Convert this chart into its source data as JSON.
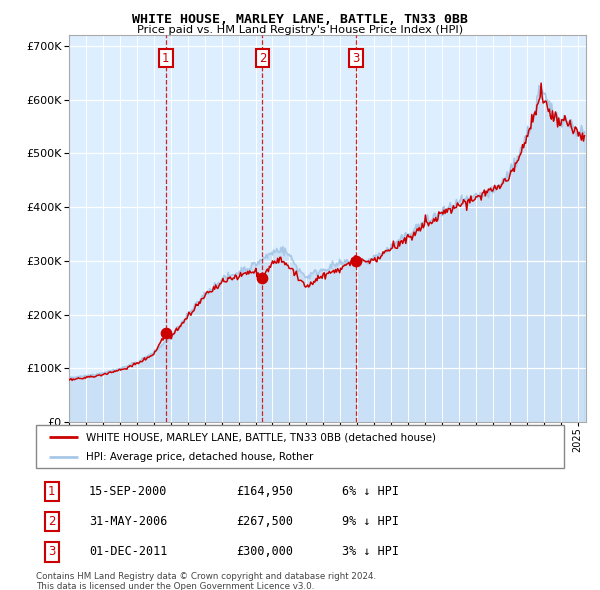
{
  "title": "WHITE HOUSE, MARLEY LANE, BATTLE, TN33 0BB",
  "subtitle": "Price paid vs. HM Land Registry's House Price Index (HPI)",
  "legend_line1": "WHITE HOUSE, MARLEY LANE, BATTLE, TN33 0BB (detached house)",
  "legend_line2": "HPI: Average price, detached house, Rother",
  "sales": [
    {
      "label": "1",
      "x_year": 2000.71,
      "price": 164950
    },
    {
      "label": "2",
      "x_year": 2006.41,
      "price": 267500
    },
    {
      "label": "3",
      "x_year": 2011.92,
      "price": 300000
    }
  ],
  "table_rows": [
    [
      "1",
      "15-SEP-2000",
      "£164,950",
      "6% ↓ HPI"
    ],
    [
      "2",
      "31-MAY-2006",
      "£267,500",
      "9% ↓ HPI"
    ],
    [
      "3",
      "01-DEC-2011",
      "£300,000",
      "3% ↓ HPI"
    ]
  ],
  "footer1": "Contains HM Land Registry data © Crown copyright and database right 2024.",
  "footer2": "This data is licensed under the Open Government Licence v3.0.",
  "hpi_color": "#a8c8e8",
  "price_color": "#cc0000",
  "bg_color": "#ddeeff",
  "ylim": [
    0,
    720000
  ],
  "xlim_start": 1995.0,
  "xlim_end": 2025.5,
  "hpi_waypoints": [
    [
      1995.0,
      82000
    ],
    [
      1996.0,
      86000
    ],
    [
      1997.0,
      92000
    ],
    [
      1998.0,
      100000
    ],
    [
      1999.0,
      112000
    ],
    [
      2000.0,
      130000
    ],
    [
      2001.0,
      160000
    ],
    [
      2002.0,
      200000
    ],
    [
      2003.0,
      240000
    ],
    [
      2004.0,
      268000
    ],
    [
      2005.0,
      282000
    ],
    [
      2006.0,
      295000
    ],
    [
      2007.0,
      318000
    ],
    [
      2007.5,
      325000
    ],
    [
      2008.0,
      310000
    ],
    [
      2008.5,
      285000
    ],
    [
      2009.0,
      270000
    ],
    [
      2009.5,
      278000
    ],
    [
      2010.0,
      285000
    ],
    [
      2010.5,
      290000
    ],
    [
      2011.0,
      295000
    ],
    [
      2011.5,
      298000
    ],
    [
      2012.0,
      295000
    ],
    [
      2012.5,
      300000
    ],
    [
      2013.0,
      308000
    ],
    [
      2013.5,
      315000
    ],
    [
      2014.0,
      325000
    ],
    [
      2014.5,
      335000
    ],
    [
      2015.0,
      348000
    ],
    [
      2015.5,
      360000
    ],
    [
      2016.0,
      372000
    ],
    [
      2016.5,
      380000
    ],
    [
      2017.0,
      390000
    ],
    [
      2017.5,
      398000
    ],
    [
      2018.0,
      405000
    ],
    [
      2018.5,
      410000
    ],
    [
      2019.0,
      415000
    ],
    [
      2019.5,
      420000
    ],
    [
      2020.0,
      425000
    ],
    [
      2020.5,
      440000
    ],
    [
      2021.0,
      460000
    ],
    [
      2021.5,
      490000
    ],
    [
      2022.0,
      530000
    ],
    [
      2022.5,
      575000
    ],
    [
      2022.75,
      620000
    ],
    [
      2023.0,
      605000
    ],
    [
      2023.5,
      575000
    ],
    [
      2024.0,
      565000
    ],
    [
      2024.5,
      555000
    ],
    [
      2025.0,
      540000
    ],
    [
      2025.4,
      535000
    ]
  ],
  "red_waypoints": [
    [
      1995.0,
      78000
    ],
    [
      1996.0,
      82000
    ],
    [
      1997.0,
      88000
    ],
    [
      1998.0,
      96000
    ],
    [
      1999.0,
      108000
    ],
    [
      2000.0,
      126000
    ],
    [
      2000.71,
      164950
    ],
    [
      2001.0,
      155000
    ],
    [
      2002.0,
      192000
    ],
    [
      2003.0,
      230000
    ],
    [
      2004.0,
      255000
    ],
    [
      2005.0,
      268000
    ],
    [
      2006.0,
      278000
    ],
    [
      2006.41,
      267500
    ],
    [
      2007.0,
      295000
    ],
    [
      2007.5,
      302000
    ],
    [
      2008.0,
      290000
    ],
    [
      2008.5,
      268000
    ],
    [
      2009.0,
      245000
    ],
    [
      2009.5,
      260000
    ],
    [
      2010.0,
      272000
    ],
    [
      2010.5,
      278000
    ],
    [
      2011.0,
      283000
    ],
    [
      2011.5,
      290000
    ],
    [
      2011.92,
      300000
    ],
    [
      2012.0,
      297000
    ],
    [
      2012.5,
      292000
    ],
    [
      2013.0,
      298000
    ],
    [
      2013.5,
      308000
    ],
    [
      2014.0,
      318000
    ],
    [
      2014.5,
      328000
    ],
    [
      2015.0,
      340000
    ],
    [
      2015.5,
      350000
    ],
    [
      2016.0,
      362000
    ],
    [
      2016.5,
      370000
    ],
    [
      2017.0,
      382000
    ],
    [
      2017.5,
      390000
    ],
    [
      2018.0,
      398000
    ],
    [
      2018.5,
      405000
    ],
    [
      2019.0,
      412000
    ],
    [
      2019.5,
      418000
    ],
    [
      2020.0,
      422000
    ],
    [
      2020.5,
      435000
    ],
    [
      2021.0,
      452000
    ],
    [
      2021.5,
      480000
    ],
    [
      2022.0,
      520000
    ],
    [
      2022.5,
      565000
    ],
    [
      2022.75,
      600000
    ],
    [
      2023.0,
      588000
    ],
    [
      2023.5,
      560000
    ],
    [
      2024.0,
      548000
    ],
    [
      2024.5,
      538000
    ],
    [
      2025.0,
      528000
    ],
    [
      2025.4,
      522000
    ]
  ]
}
